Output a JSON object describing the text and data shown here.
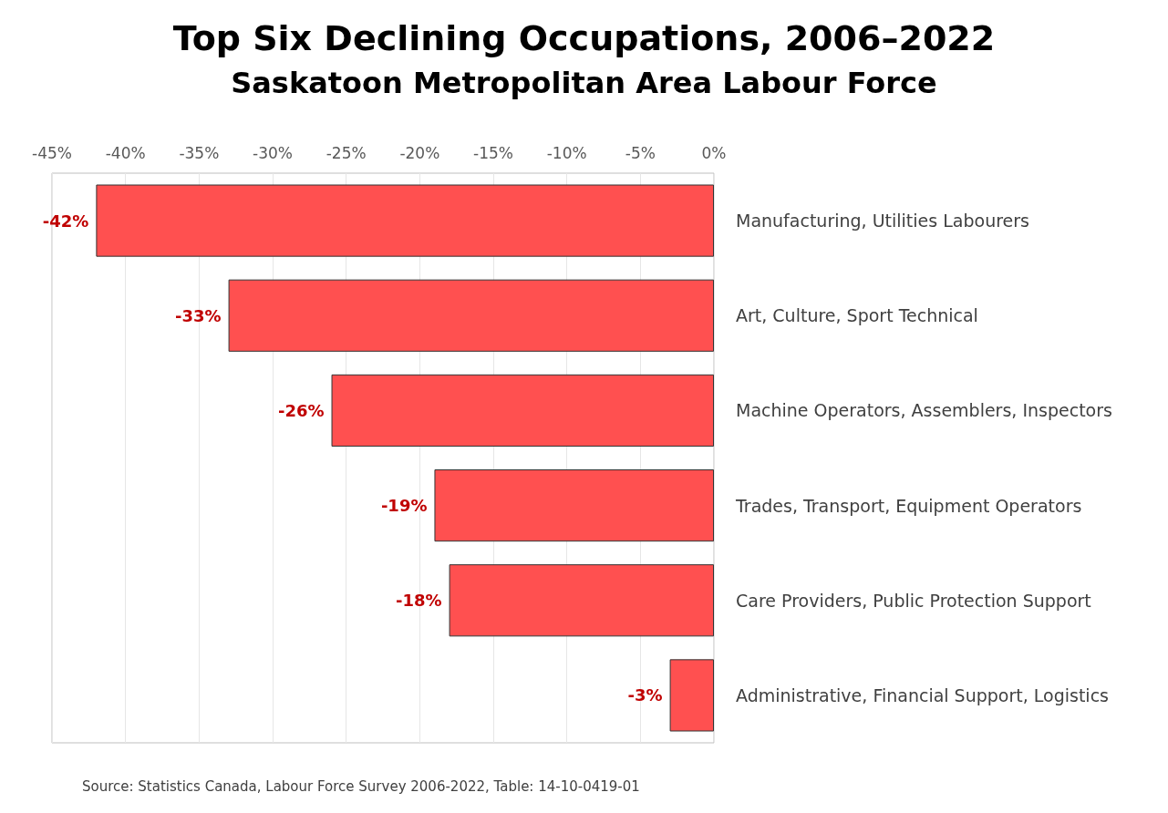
{
  "chart_data": {
    "type": "bar",
    "orientation": "horizontal",
    "title": "Top Six Declining Occupations, 2006–2022",
    "subtitle": "Saskatoon Metropolitan Area Labour Force",
    "categories": [
      "Manufacturing, Utilities Labourers",
      "Art, Culture, Sport Technical",
      "Machine Operators, Assemblers, Inspectors",
      "Trades, Transport, Equipment Operators",
      "Care Providers, Public Protection Support",
      "Administrative, Financial Support, Logistics"
    ],
    "values": [
      -42,
      -33,
      -26,
      -19,
      -18,
      -3
    ],
    "value_labels": [
      "-42%",
      "-33%",
      "-26%",
      "-19%",
      "-18%",
      "-3%"
    ],
    "color": "#ff5050",
    "xlim": [
      -45,
      0
    ],
    "xticks": [
      {
        "value": -45,
        "label": "-45%"
      },
      {
        "value": -40,
        "label": "-40%"
      },
      {
        "value": -35,
        "label": "-35%"
      },
      {
        "value": -30,
        "label": "-30%"
      },
      {
        "value": -25,
        "label": "-25%"
      },
      {
        "value": -20,
        "label": "-20%"
      },
      {
        "value": -15,
        "label": "-15%"
      },
      {
        "value": -10,
        "label": "-10%"
      },
      {
        "value": -5,
        "label": "-5%"
      },
      {
        "value": 0,
        "label": "0%"
      }
    ],
    "grid": "x",
    "annotations": [
      "Source: Statistics Canada, Labour Force Survey 2006-2022, Table: 14-10-0419-01"
    ]
  }
}
